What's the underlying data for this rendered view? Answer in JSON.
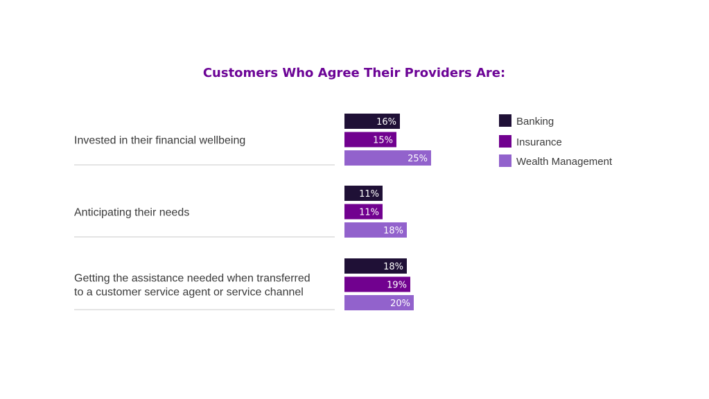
{
  "chart_data": {
    "type": "bar",
    "orientation": "horizontal",
    "title": "Customers Who Agree Their Providers Are:",
    "categories": [
      [
        "Invested in their financial wellbeing"
      ],
      [
        "Anticipating their needs"
      ],
      [
        "Getting the assistance needed when transferred",
        "to a customer service agent or service channel"
      ]
    ],
    "series": [
      {
        "name": "Banking",
        "color": "#1f1036",
        "values": [
          16,
          11,
          18
        ]
      },
      {
        "name": "Insurance",
        "color": "#71018f",
        "values": [
          15,
          11,
          19
        ]
      },
      {
        "name": "Wealth Management",
        "color": "#9262cc",
        "values": [
          25,
          18,
          20
        ]
      }
    ],
    "unit": "%",
    "legend_position": "right",
    "grid": false,
    "title_color": "#6c0496"
  }
}
